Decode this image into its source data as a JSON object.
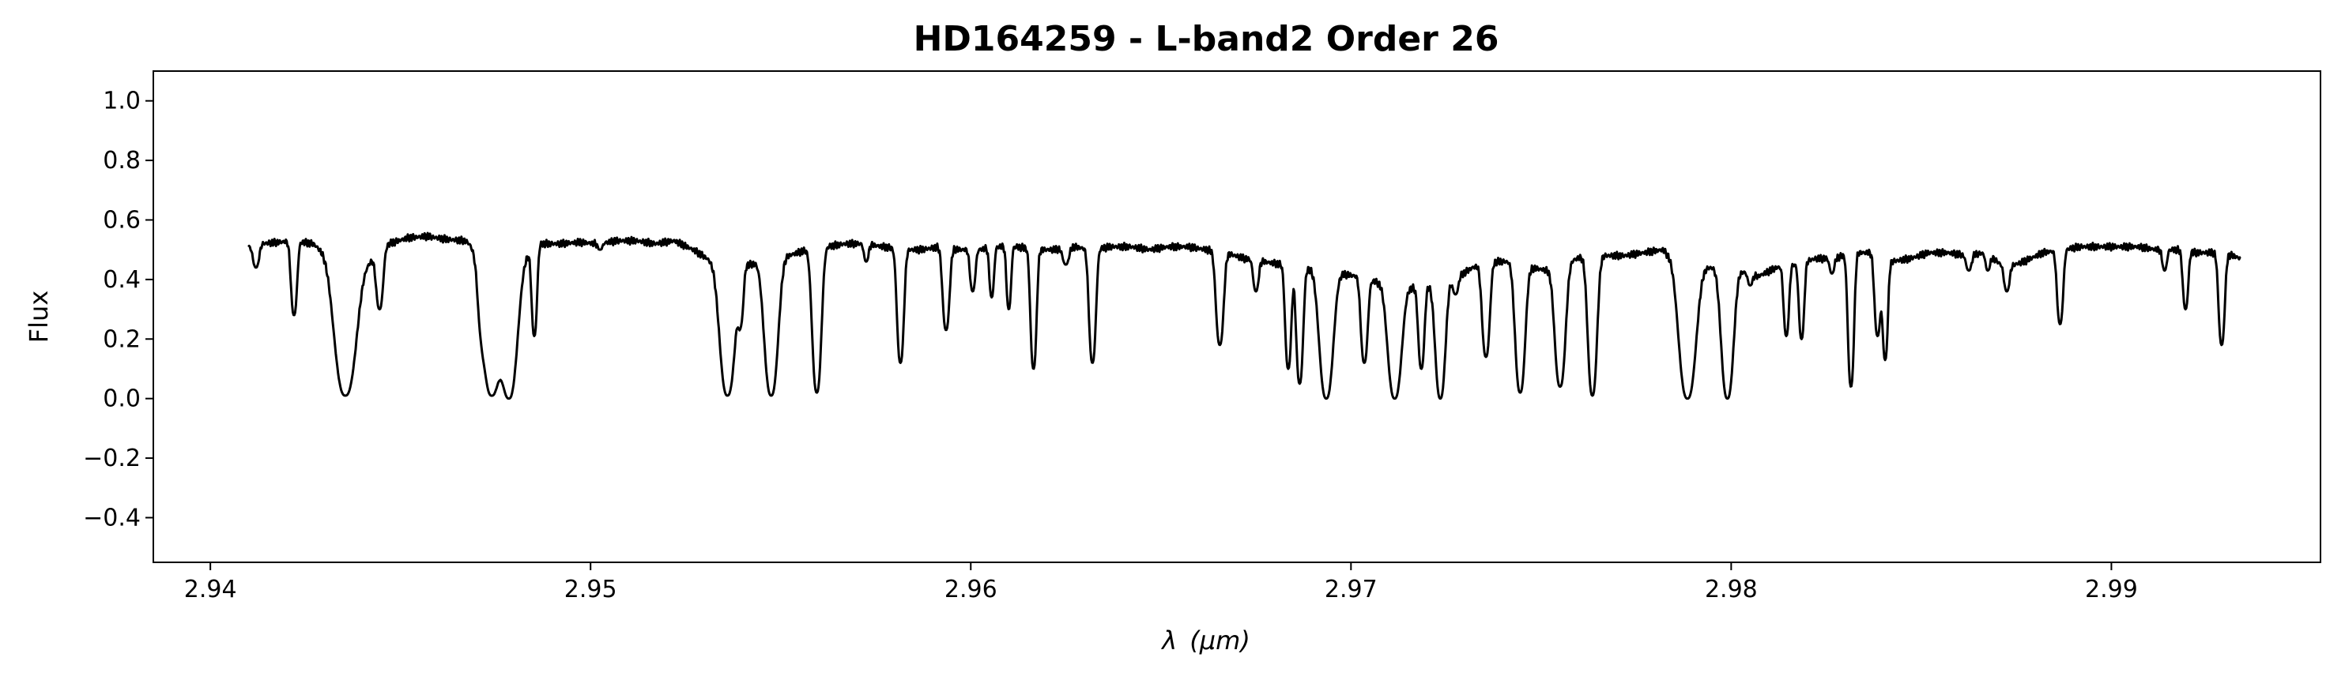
{
  "chart_data": {
    "type": "line",
    "title": "HD164259 - L-band2 Order 26",
    "xlabel_symbol": "λ",
    "xlabel_unit": "(μm)",
    "ylabel": "Flux",
    "xlim": [
      2.9385,
      2.9955
    ],
    "ylim": [
      -0.55,
      1.1
    ],
    "xticks": [
      2.94,
      2.95,
      2.96,
      2.97,
      2.98,
      2.99
    ],
    "xtick_labels": [
      "2.94",
      "2.95",
      "2.96",
      "2.97",
      "2.98",
      "2.99"
    ],
    "yticks": [
      -0.4,
      -0.2,
      0.0,
      0.2,
      0.4,
      0.6,
      0.8,
      1.0
    ],
    "ytick_labels": [
      "−0.4",
      "−0.2",
      "0.0",
      "0.2",
      "0.4",
      "0.6",
      "0.8",
      "1.0"
    ],
    "grid": false,
    "series": [
      {
        "color": "#000000",
        "continuum": [
          [
            2.941,
            0.51
          ],
          [
            2.9413,
            0.52
          ],
          [
            2.9418,
            0.525
          ],
          [
            2.9422,
            0.53
          ],
          [
            2.9427,
            0.52
          ],
          [
            2.9432,
            0.47
          ],
          [
            2.9438,
            0.44
          ],
          [
            2.9442,
            0.46
          ],
          [
            2.9447,
            0.52
          ],
          [
            2.9452,
            0.54
          ],
          [
            2.9457,
            0.545
          ],
          [
            2.9462,
            0.535
          ],
          [
            2.9467,
            0.53
          ],
          [
            2.9472,
            0.5
          ],
          [
            2.9478,
            0.44
          ],
          [
            2.9482,
            0.47
          ],
          [
            2.9487,
            0.52
          ],
          [
            2.9492,
            0.52
          ],
          [
            2.9497,
            0.525
          ],
          [
            2.9502,
            0.52
          ],
          [
            2.9507,
            0.53
          ],
          [
            2.9512,
            0.53
          ],
          [
            2.9517,
            0.52
          ],
          [
            2.9522,
            0.53
          ],
          [
            2.9527,
            0.5
          ],
          [
            2.9532,
            0.46
          ],
          [
            2.9537,
            0.44
          ],
          [
            2.9542,
            0.45
          ],
          [
            2.9547,
            0.47
          ],
          [
            2.9552,
            0.48
          ],
          [
            2.9557,
            0.5
          ],
          [
            2.9562,
            0.51
          ],
          [
            2.9567,
            0.52
          ],
          [
            2.9572,
            0.52
          ],
          [
            2.9577,
            0.51
          ],
          [
            2.9582,
            0.5
          ],
          [
            2.9587,
            0.5
          ],
          [
            2.9592,
            0.51
          ],
          [
            2.9597,
            0.5
          ],
          [
            2.9602,
            0.5
          ],
          [
            2.9607,
            0.51
          ],
          [
            2.9612,
            0.51
          ],
          [
            2.9617,
            0.5
          ],
          [
            2.9622,
            0.5
          ],
          [
            2.9627,
            0.51
          ],
          [
            2.9632,
            0.5
          ],
          [
            2.9637,
            0.51
          ],
          [
            2.9642,
            0.51
          ],
          [
            2.9647,
            0.5
          ],
          [
            2.9652,
            0.51
          ],
          [
            2.9657,
            0.51
          ],
          [
            2.9662,
            0.5
          ],
          [
            2.9667,
            0.49
          ],
          [
            2.9672,
            0.47
          ],
          [
            2.9677,
            0.46
          ],
          [
            2.9682,
            0.45
          ],
          [
            2.9687,
            0.44
          ],
          [
            2.9692,
            0.43
          ],
          [
            2.9697,
            0.42
          ],
          [
            2.9702,
            0.41
          ],
          [
            2.9707,
            0.39
          ],
          [
            2.9712,
            0.38
          ],
          [
            2.9717,
            0.37
          ],
          [
            2.9722,
            0.38
          ],
          [
            2.9727,
            0.4
          ],
          [
            2.9732,
            0.44
          ],
          [
            2.9737,
            0.46
          ],
          [
            2.9742,
            0.46
          ],
          [
            2.9747,
            0.44
          ],
          [
            2.9752,
            0.43
          ],
          [
            2.9757,
            0.46
          ],
          [
            2.9762,
            0.48
          ],
          [
            2.9767,
            0.48
          ],
          [
            2.9772,
            0.48
          ],
          [
            2.9777,
            0.49
          ],
          [
            2.9782,
            0.5
          ],
          [
            2.9787,
            0.44
          ],
          [
            2.9792,
            0.44
          ],
          [
            2.9797,
            0.44
          ],
          [
            2.9802,
            0.43
          ],
          [
            2.9807,
            0.41
          ],
          [
            2.9812,
            0.44
          ],
          [
            2.9817,
            0.45
          ],
          [
            2.9822,
            0.47
          ],
          [
            2.9827,
            0.47
          ],
          [
            2.9832,
            0.49
          ],
          [
            2.9837,
            0.49
          ],
          [
            2.9842,
            0.46
          ],
          [
            2.9847,
            0.47
          ],
          [
            2.9852,
            0.49
          ],
          [
            2.9857,
            0.49
          ],
          [
            2.9862,
            0.48
          ],
          [
            2.9867,
            0.49
          ],
          [
            2.9872,
            0.44
          ],
          [
            2.9877,
            0.46
          ],
          [
            2.9882,
            0.49
          ],
          [
            2.9887,
            0.5
          ],
          [
            2.9892,
            0.51
          ],
          [
            2.9897,
            0.51
          ],
          [
            2.9902,
            0.51
          ],
          [
            2.9907,
            0.51
          ],
          [
            2.9912,
            0.5
          ],
          [
            2.9917,
            0.5
          ],
          [
            2.9922,
            0.49
          ],
          [
            2.9927,
            0.49
          ],
          [
            2.9932,
            0.48
          ],
          [
            2.9934,
            0.47
          ]
        ],
        "absorption_lines": [
          [
            2.9412,
            0.44,
            8e-05
          ],
          [
            2.9422,
            0.28,
            8e-05
          ],
          [
            2.94355,
            0.01,
            0.00028
          ],
          [
            2.94445,
            0.3,
            9e-05
          ],
          [
            2.94712,
            0.37,
            8e-05
          ],
          [
            2.9474,
            0.01,
            0.00025
          ],
          [
            2.94785,
            0.0,
            0.00022
          ],
          [
            2.94852,
            0.21,
            7e-05
          ],
          [
            2.95025,
            0.5,
            6e-05
          ],
          [
            2.9536,
            0.01,
            0.0002
          ],
          [
            2.95395,
            0.27,
            7e-05
          ],
          [
            2.95475,
            0.01,
            0.00018
          ],
          [
            2.95595,
            0.02,
            0.00012
          ],
          [
            2.95725,
            0.46,
            6e-05
          ],
          [
            2.95815,
            0.12,
            9e-05
          ],
          [
            2.95935,
            0.23,
            9e-05
          ],
          [
            2.96005,
            0.36,
            7e-05
          ],
          [
            2.96055,
            0.34,
            6e-05
          ],
          [
            2.961,
            0.3,
            6e-05
          ],
          [
            2.96165,
            0.1,
            8e-05
          ],
          [
            2.9625,
            0.45,
            8e-05
          ],
          [
            2.9632,
            0.12,
            9e-05
          ],
          [
            2.96655,
            0.18,
            0.0001
          ],
          [
            2.9675,
            0.36,
            7e-05
          ],
          [
            2.96835,
            0.1,
            8e-05
          ],
          [
            2.96865,
            0.05,
            9e-05
          ],
          [
            2.96935,
            0.0,
            0.00018
          ],
          [
            2.97035,
            0.12,
            9e-05
          ],
          [
            2.97115,
            0.0,
            0.00018
          ],
          [
            2.97185,
            0.1,
            8e-05
          ],
          [
            2.97235,
            0.0,
            0.00013
          ],
          [
            2.97275,
            0.35,
            7e-05
          ],
          [
            2.97355,
            0.14,
            0.0001
          ],
          [
            2.97445,
            0.02,
            0.00013
          ],
          [
            2.9755,
            0.04,
            0.00014
          ],
          [
            2.97635,
            0.01,
            0.00012
          ],
          [
            2.97885,
            0.0,
            0.00022
          ],
          [
            2.9799,
            0.0,
            0.00016
          ],
          [
            2.9805,
            0.38,
            6e-05
          ],
          [
            2.98145,
            0.21,
            7e-05
          ],
          [
            2.98185,
            0.2,
            7e-05
          ],
          [
            2.98265,
            0.42,
            6e-05
          ],
          [
            2.98315,
            0.04,
            8e-05
          ],
          [
            2.98385,
            0.21,
            8e-05
          ],
          [
            2.98405,
            0.13,
            7e-05
          ],
          [
            2.98535,
            0.5,
            6e-05
          ],
          [
            2.98625,
            0.43,
            7e-05
          ],
          [
            2.98675,
            0.43,
            6e-05
          ],
          [
            2.98725,
            0.36,
            7e-05
          ],
          [
            2.98865,
            0.25,
            8e-05
          ],
          [
            2.9914,
            0.43,
            6e-05
          ],
          [
            2.99195,
            0.3,
            7e-05
          ],
          [
            2.9929,
            0.18,
            8e-05
          ]
        ]
      }
    ]
  }
}
